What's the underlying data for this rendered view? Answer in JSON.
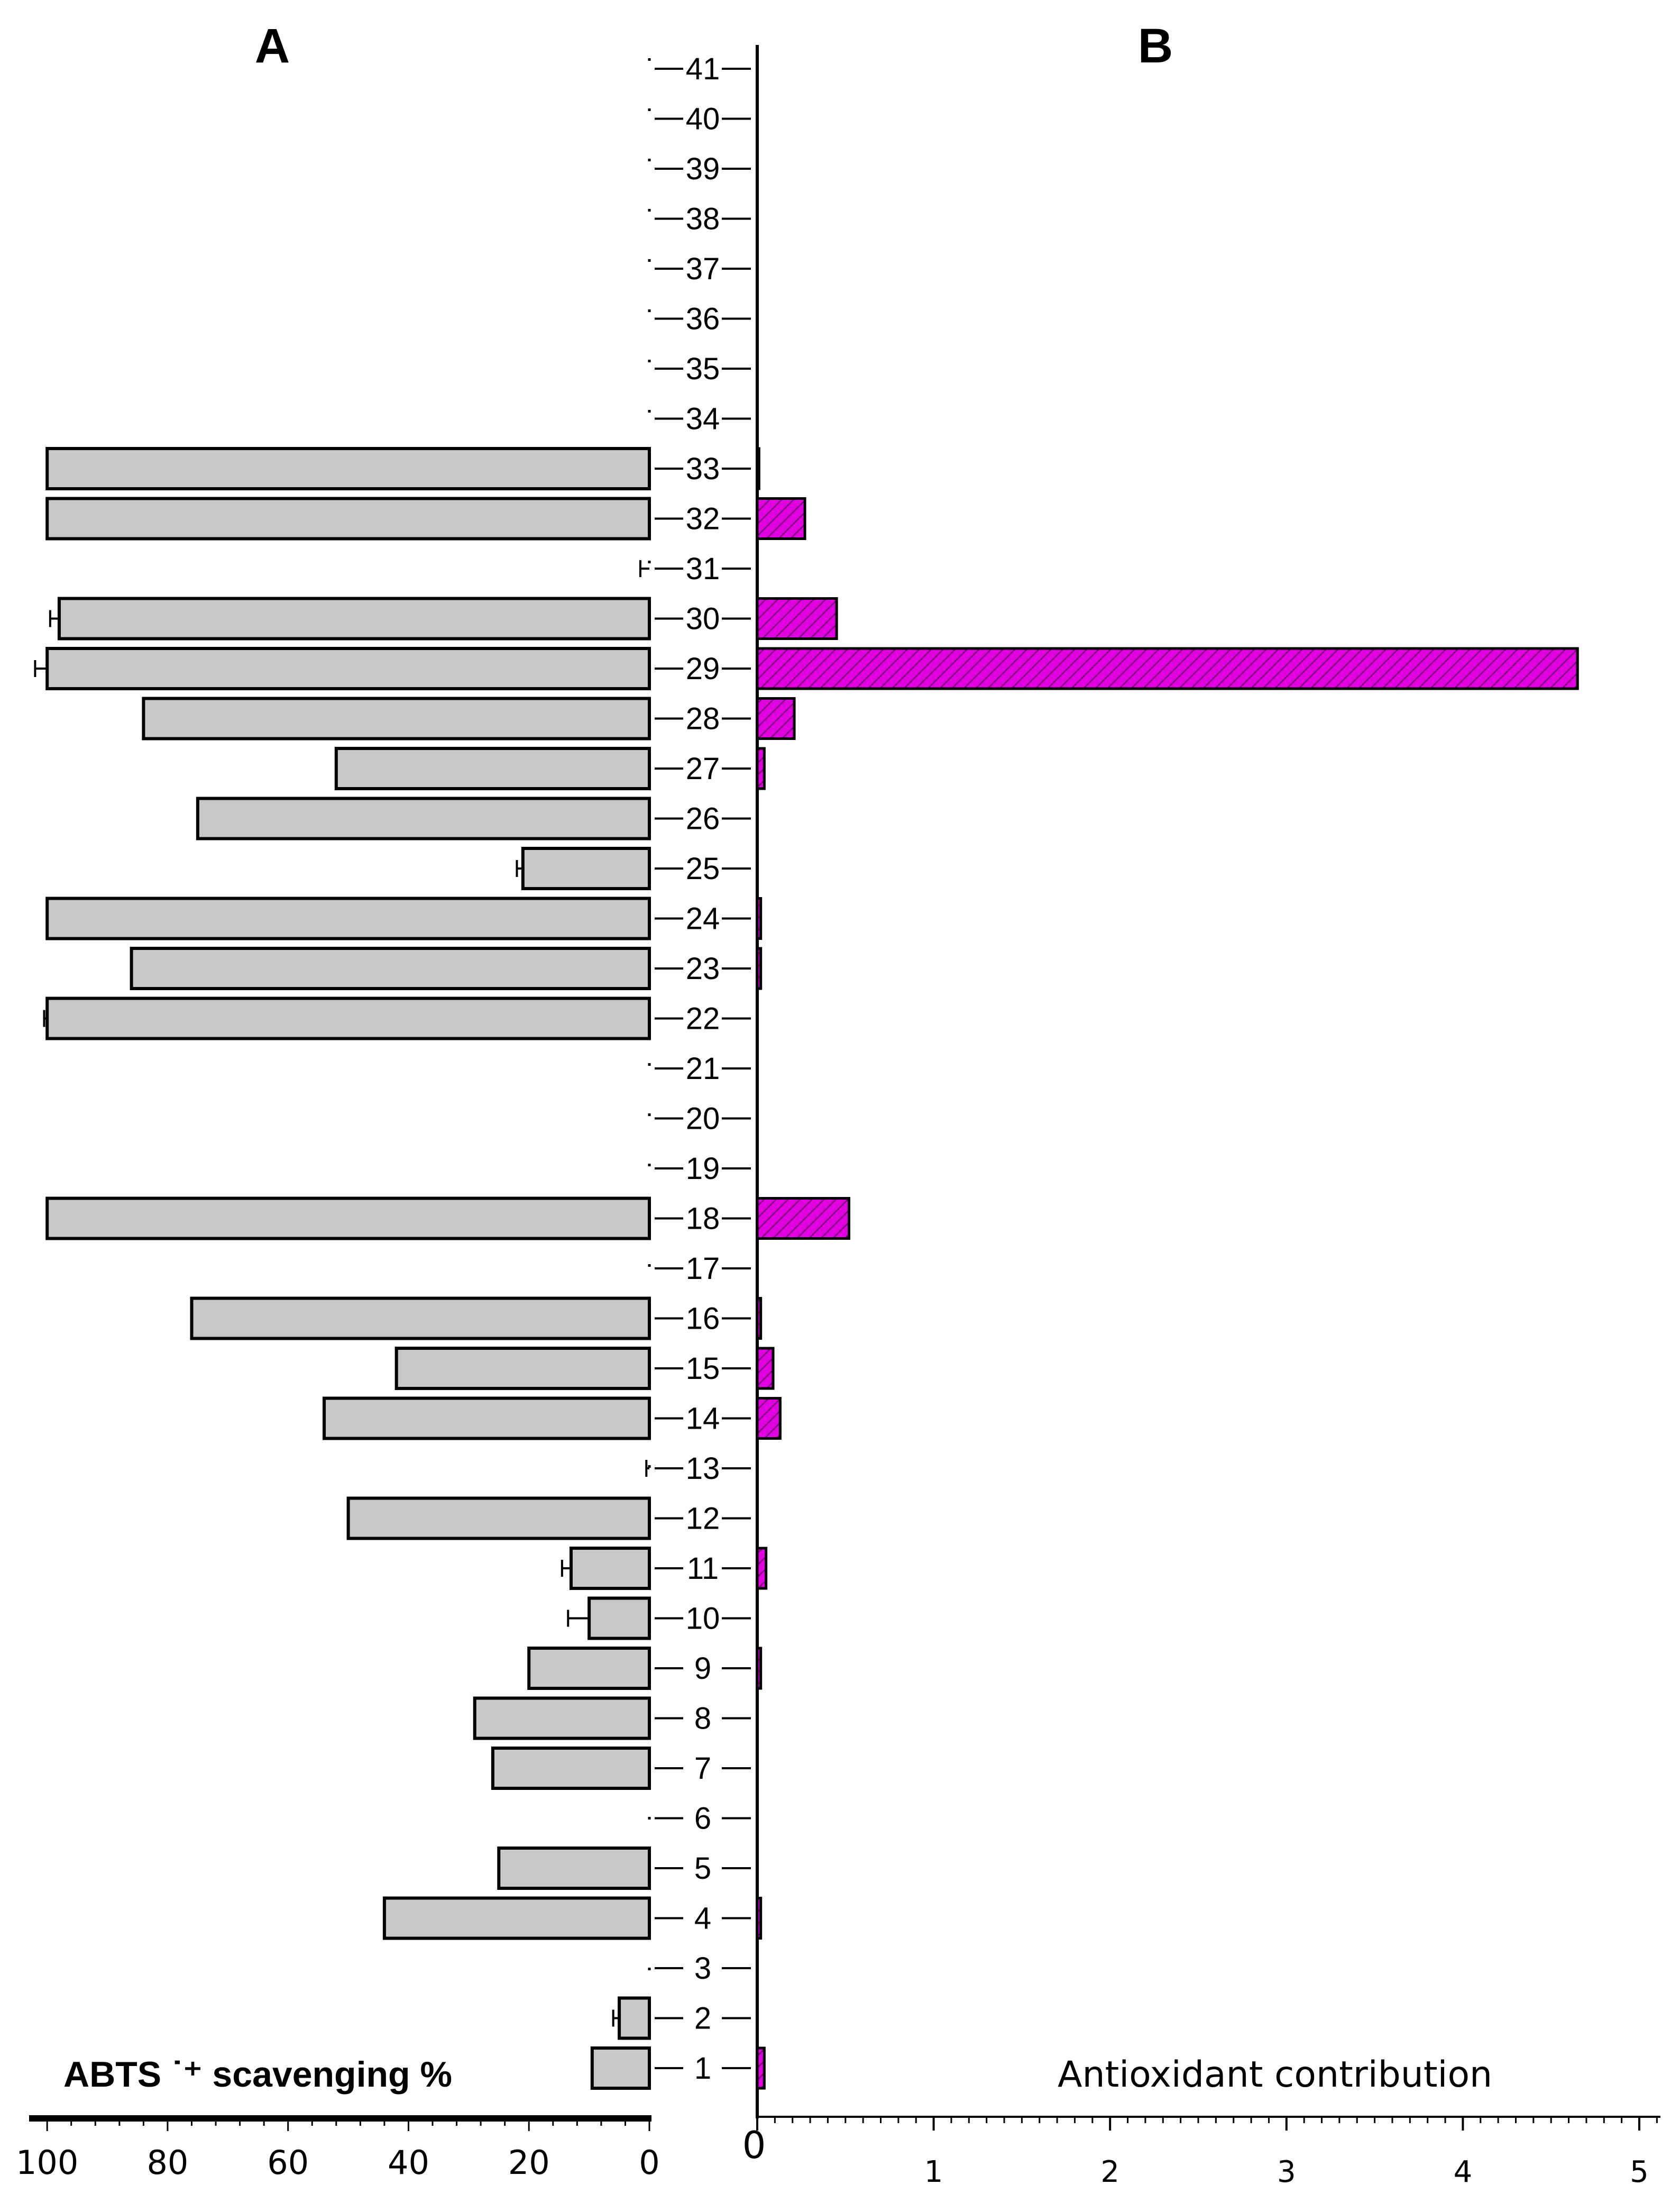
{
  "chart_data": [
    {
      "panel": "A",
      "type": "bar",
      "orientation": "horizontal",
      "direction": "right-to-left",
      "xlabel": "ABTS ˙⁺ scavenging %",
      "xlim": [
        0,
        103
      ],
      "xticks": [
        100,
        80,
        60,
        40,
        20,
        0
      ],
      "categories": [
        "1",
        "2",
        "3",
        "4",
        "5",
        "6",
        "7",
        "8",
        "9",
        "10",
        "11",
        "12",
        "13",
        "14",
        "15",
        "16",
        "17",
        "18",
        "19",
        "20",
        "21",
        "22",
        "23",
        "24",
        "25",
        "26",
        "27",
        "28",
        "29",
        "30",
        "31",
        "32",
        "33",
        "34",
        "35",
        "36",
        "37",
        "38",
        "39",
        "40",
        "41"
      ],
      "values": [
        9.5,
        5,
        0,
        44,
        25,
        0,
        26,
        29,
        20,
        10,
        13,
        50,
        0,
        54,
        42,
        76,
        0,
        100,
        0,
        0,
        0,
        100,
        86,
        100,
        21,
        75,
        52,
        84,
        100,
        98,
        0,
        100,
        100,
        0,
        0,
        0,
        0,
        0,
        0,
        0,
        0
      ],
      "errors": [
        0,
        1,
        0,
        0,
        0,
        0,
        0,
        0,
        0,
        3.5,
        1.5,
        0,
        0.5,
        0,
        0,
        0,
        0,
        0,
        0,
        0,
        0,
        0.5,
        0,
        0,
        1,
        0,
        0,
        0,
        2,
        1.5,
        1.5,
        0,
        0,
        0,
        0,
        0,
        0,
        0,
        0,
        0,
        0
      ],
      "bar_color": "#c8c8c8"
    },
    {
      "panel": "B",
      "type": "bar",
      "orientation": "horizontal",
      "xlabel": "Antioxidant contribution",
      "xlim": [
        0,
        5.05
      ],
      "xticks": [
        0,
        1,
        2,
        3,
        4,
        5
      ],
      "categories": [
        "1",
        "2",
        "3",
        "4",
        "5",
        "6",
        "7",
        "8",
        "9",
        "10",
        "11",
        "12",
        "13",
        "14",
        "15",
        "16",
        "17",
        "18",
        "19",
        "20",
        "21",
        "22",
        "23",
        "24",
        "25",
        "26",
        "27",
        "28",
        "29",
        "30",
        "31",
        "32",
        "33",
        "34",
        "35",
        "36",
        "37",
        "38",
        "39",
        "40",
        "41"
      ],
      "values": [
        0.04,
        0,
        0,
        0.02,
        0,
        0,
        0,
        0,
        0.02,
        0,
        0.05,
        0,
        0,
        0.13,
        0.09,
        0.02,
        0,
        0.52,
        0,
        0,
        0,
        0,
        0.02,
        0.02,
        0,
        0,
        0.04,
        0.21,
        4.65,
        0.45,
        0,
        0.27,
        0.01,
        0,
        0,
        0,
        0,
        0,
        0,
        0,
        0
      ],
      "bar_color": "#e000e0"
    }
  ]
}
